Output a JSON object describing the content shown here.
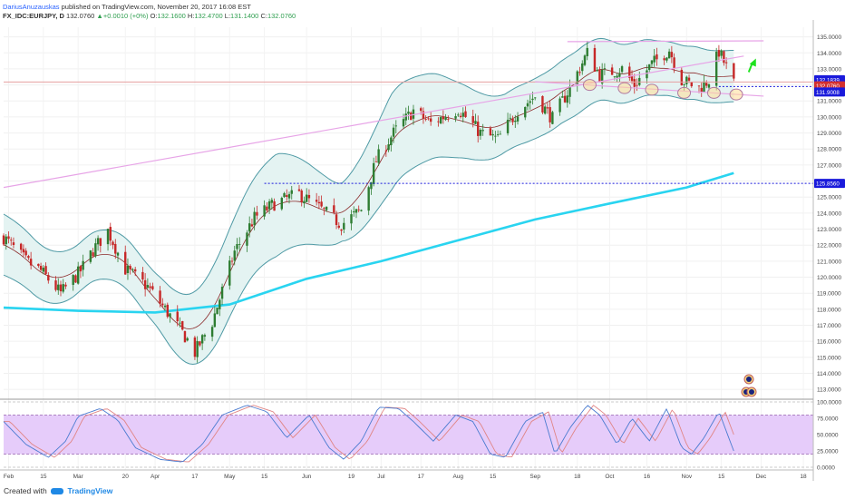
{
  "header": {
    "author": "DariusAnuzauskas",
    "published": "published on TradingView.com, November 20, 2017 16:08 EST",
    "symbol": "FX_IDC:EURJPY, D",
    "last": "132.0760",
    "change": "+0.0010 (+0%)",
    "ohlc": {
      "o": "132.1600",
      "h": "132.4700",
      "l": "131.1400",
      "c": "132.0760"
    }
  },
  "footer": {
    "created_with": "Created with",
    "brand": "TradingView"
  },
  "price_badges": [
    {
      "label": "132.1839",
      "color": "#1a1adb"
    },
    {
      "label": "132.0760",
      "color": "#d32f2f"
    },
    {
      "label": "131.9008",
      "color": "#1a1adb"
    },
    {
      "label": "125.8560",
      "color": "#1a1adb"
    }
  ],
  "colors": {
    "bull": "#2e7d32",
    "bear": "#c62828",
    "ma200": "#29d4f0",
    "band": "#4f9aa5",
    "band_fill": "#e4f3f2",
    "basis": "#8b2a2a",
    "trend": "#e7a4e7",
    "level": "#1a1adb",
    "osc_bg": "#e6ccfa",
    "stoch_k": "#4a7bd0",
    "stoch_d": "#e08585",
    "arrow": "#1ee21e"
  },
  "chart_data": [
    {
      "type": "candlestick",
      "title": "EURJPY daily",
      "x_ticks": [
        "Feb",
        "15",
        "Mar",
        "20",
        "Apr",
        "17",
        "May",
        "15",
        "Jun",
        "19",
        "Jul",
        "17",
        "Aug",
        "15",
        "Sep",
        "18",
        "Oct",
        "16",
        "Nov",
        "15",
        "Dec",
        "18"
      ],
      "y_ticks": [
        "135.0000",
        "134.0000",
        "133.0000",
        "132.0000",
        "131.0000",
        "130.0000",
        "129.0000",
        "128.0000",
        "127.0000",
        "126.0000",
        "125.0000",
        "124.0000",
        "123.0000",
        "122.0000",
        "121.0000",
        "120.0000",
        "119.0000",
        "118.0000",
        "117.0000",
        "116.0000",
        "115.0000",
        "114.0000",
        "113.0000"
      ],
      "ylim": [
        112.5,
        135.6
      ],
      "x_range": [
        "2017-01-30",
        "2017-12-22"
      ],
      "close_path": [
        [
          "2017-01-30",
          122.5
        ],
        [
          "2017-02-08",
          121.0
        ],
        [
          "2017-02-14",
          120.4
        ],
        [
          "2017-02-22",
          119.0
        ],
        [
          "2017-03-02",
          120.4
        ],
        [
          "2017-03-07",
          121.7
        ],
        [
          "2017-03-13",
          122.9
        ],
        [
          "2017-03-20",
          120.5
        ],
        [
          "2017-03-29",
          119.4
        ],
        [
          "2017-04-07",
          117.6
        ],
        [
          "2017-04-14",
          116.1
        ],
        [
          "2017-04-17",
          115.3
        ],
        [
          "2017-04-24",
          117.2
        ],
        [
          "2017-05-03",
          121.6
        ],
        [
          "2017-05-11",
          123.7
        ],
        [
          "2017-05-19",
          124.6
        ],
        [
          "2017-05-29",
          125.2
        ],
        [
          "2017-06-08",
          124.1
        ],
        [
          "2017-06-15",
          123.3
        ],
        [
          "2017-06-23",
          124.2
        ],
        [
          "2017-06-29",
          127.3
        ],
        [
          "2017-07-06",
          129.0
        ],
        [
          "2017-07-14",
          130.4
        ],
        [
          "2017-07-21",
          129.6
        ],
        [
          "2017-08-01",
          130.5
        ],
        [
          "2017-08-10",
          129.0
        ],
        [
          "2017-08-17",
          128.6
        ],
        [
          "2017-08-25",
          130.4
        ],
        [
          "2017-09-01",
          131.3
        ],
        [
          "2017-09-08",
          129.9
        ],
        [
          "2017-09-15",
          131.8
        ],
        [
          "2017-09-22",
          134.0
        ],
        [
          "2017-09-27",
          132.6
        ],
        [
          "2017-10-06",
          133.0
        ],
        [
          "2017-10-11",
          132.0
        ],
        [
          "2017-10-18",
          133.3
        ],
        [
          "2017-10-25",
          134.2
        ],
        [
          "2017-10-30",
          132.3
        ],
        [
          "2017-11-06",
          131.8
        ],
        [
          "2017-11-10",
          132.3
        ],
        [
          "2017-11-14",
          134.1
        ],
        [
          "2017-11-20",
          132.08
        ]
      ],
      "ma200_path": [
        [
          "2017-01-30",
          118.1
        ],
        [
          "2017-03-01",
          117.9
        ],
        [
          "2017-04-01",
          117.8
        ],
        [
          "2017-05-01",
          118.3
        ],
        [
          "2017-06-01",
          119.9
        ],
        [
          "2017-07-01",
          121.0
        ],
        [
          "2017-08-01",
          122.3
        ],
        [
          "2017-09-01",
          123.6
        ],
        [
          "2017-10-01",
          124.6
        ],
        [
          "2017-11-01",
          125.6
        ],
        [
          "2017-11-20",
          126.5
        ]
      ],
      "bollinger_width_path": [
        [
          "2017-01-30",
          1.9
        ],
        [
          "2017-03-01",
          1.5
        ],
        [
          "2017-04-01",
          1.6
        ],
        [
          "2017-04-25",
          2.6
        ],
        [
          "2017-05-20",
          3.2
        ],
        [
          "2017-06-15",
          1.8
        ],
        [
          "2017-07-05",
          3.0
        ],
        [
          "2017-07-20",
          2.7
        ],
        [
          "2017-08-20",
          1.8
        ],
        [
          "2017-09-20",
          2.0
        ],
        [
          "2017-10-20",
          1.7
        ],
        [
          "2017-11-20",
          1.6
        ]
      ],
      "levels": [
        {
          "value": 125.856,
          "from": "2017-05-15",
          "to": "2017-12-22"
        },
        {
          "value": 131.9008,
          "from": "2017-11-14",
          "to": "2017-12-22"
        },
        {
          "value": 132.1839,
          "from": "2017-01-30",
          "to": "2017-12-22"
        }
      ],
      "trendlines": [
        {
          "from": [
            "2017-01-30",
            125.6
          ],
          "to": [
            "2017-11-24",
            133.8
          ]
        },
        {
          "from": [
            "2017-09-14",
            134.7
          ],
          "to": [
            "2017-12-02",
            134.75
          ]
        },
        {
          "from": [
            "2017-09-01",
            132.2
          ],
          "to": [
            "2017-12-02",
            131.3
          ]
        }
      ],
      "markers": [
        {
          "date": "2017-09-23",
          "value": 132.0
        },
        {
          "date": "2017-10-07",
          "value": 131.8
        },
        {
          "date": "2017-10-18",
          "value": 131.7
        },
        {
          "date": "2017-10-31",
          "value": 131.5
        },
        {
          "date": "2017-11-12",
          "value": 131.5
        },
        {
          "date": "2017-11-21",
          "value": 131.4
        }
      ]
    },
    {
      "type": "line",
      "title": "Stochastic",
      "y_ticks": [
        "100.0000",
        "75.0000",
        "50.0000",
        "25.0000",
        "0.0000"
      ],
      "ylim": [
        0,
        100
      ],
      "band": [
        20,
        80
      ],
      "k_path": [
        [
          "2017-01-30",
          70
        ],
        [
          "2017-02-08",
          35
        ],
        [
          "2017-02-17",
          15
        ],
        [
          "2017-02-24",
          40
        ],
        [
          "2017-03-01",
          78
        ],
        [
          "2017-03-10",
          90
        ],
        [
          "2017-03-17",
          72
        ],
        [
          "2017-03-24",
          30
        ],
        [
          "2017-04-03",
          12
        ],
        [
          "2017-04-12",
          8
        ],
        [
          "2017-04-20",
          35
        ],
        [
          "2017-04-28",
          80
        ],
        [
          "2017-05-08",
          95
        ],
        [
          "2017-05-16",
          85
        ],
        [
          "2017-05-24",
          45
        ],
        [
          "2017-06-02",
          80
        ],
        [
          "2017-06-10",
          30
        ],
        [
          "2017-06-16",
          12
        ],
        [
          "2017-06-23",
          40
        ],
        [
          "2017-06-30",
          92
        ],
        [
          "2017-07-08",
          90
        ],
        [
          "2017-07-14",
          70
        ],
        [
          "2017-07-22",
          40
        ],
        [
          "2017-07-31",
          80
        ],
        [
          "2017-08-07",
          70
        ],
        [
          "2017-08-14",
          20
        ],
        [
          "2017-08-20",
          15
        ],
        [
          "2017-08-28",
          70
        ],
        [
          "2017-09-04",
          85
        ],
        [
          "2017-09-09",
          20
        ],
        [
          "2017-09-15",
          60
        ],
        [
          "2017-09-22",
          95
        ],
        [
          "2017-09-27",
          80
        ],
        [
          "2017-10-04",
          35
        ],
        [
          "2017-10-10",
          75
        ],
        [
          "2017-10-17",
          40
        ],
        [
          "2017-10-24",
          90
        ],
        [
          "2017-10-30",
          30
        ],
        [
          "2017-11-03",
          20
        ],
        [
          "2017-11-08",
          45
        ],
        [
          "2017-11-14",
          85
        ],
        [
          "2017-11-20",
          25
        ]
      ]
    }
  ]
}
